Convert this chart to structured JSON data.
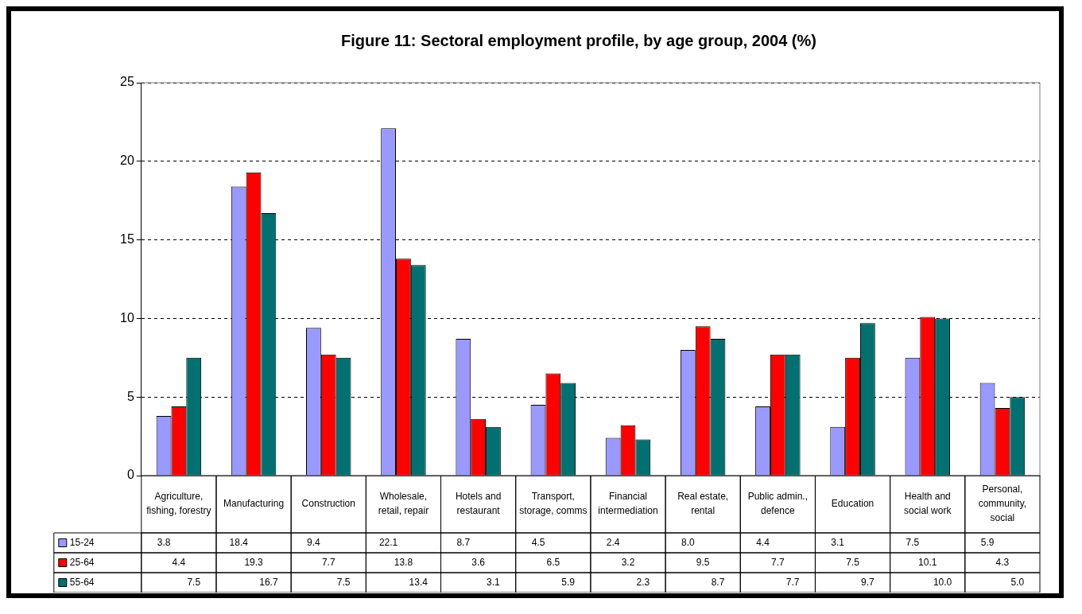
{
  "chart_data": {
    "type": "bar",
    "title": "Figure 11: Sectoral employment profile, by age group, 2004 (%)",
    "categories": [
      "Agriculture, fishing, forestry",
      "Manufacturing",
      "Construction",
      "Wholesale, retail, repair",
      "Hotels and restaurant",
      "Transport, storage, comms",
      "Financial intermediation",
      "Real estate, rental",
      "Public admin., defence",
      "Education",
      "Health and social work",
      "Personal, community, social"
    ],
    "series": [
      {
        "name": "15-24",
        "color": "#9999ff",
        "values": [
          3.8,
          18.4,
          9.4,
          22.1,
          8.7,
          4.5,
          2.4,
          8.0,
          4.4,
          3.1,
          7.5,
          5.9
        ],
        "value_labels": [
          "3.8",
          "18.4",
          "9.4",
          "22.1",
          "8.7",
          "4.5",
          "2.4",
          "8.0",
          "4.4",
          "3.1",
          "7.5",
          "5.9"
        ]
      },
      {
        "name": "25-64",
        "color": "#ff0000",
        "values": [
          4.4,
          19.3,
          7.7,
          13.8,
          3.6,
          6.5,
          3.2,
          9.5,
          7.7,
          7.5,
          10.1,
          4.3
        ],
        "value_labels": [
          "4.4",
          "19.3",
          "7.7",
          "13.8",
          "3.6",
          "6.5",
          "3.2",
          "9.5",
          "7.7",
          "7.5",
          "10.1",
          "4.3"
        ]
      },
      {
        "name": "55-64",
        "color": "#007070",
        "values": [
          7.5,
          16.7,
          7.5,
          13.4,
          3.1,
          5.9,
          2.3,
          8.7,
          7.7,
          9.7,
          10.0,
          5.0
        ],
        "value_labels": [
          "7.5",
          "16.7",
          "7.5",
          "13.4",
          "3.1",
          "5.9",
          "2.3",
          "8.7",
          "7.7",
          "9.7",
          "10.0",
          "5.0"
        ]
      }
    ],
    "ylim": [
      0,
      25
    ],
    "yticks": [
      0,
      5,
      10,
      15,
      20,
      25
    ],
    "grid": "y",
    "legend": "bottom"
  }
}
